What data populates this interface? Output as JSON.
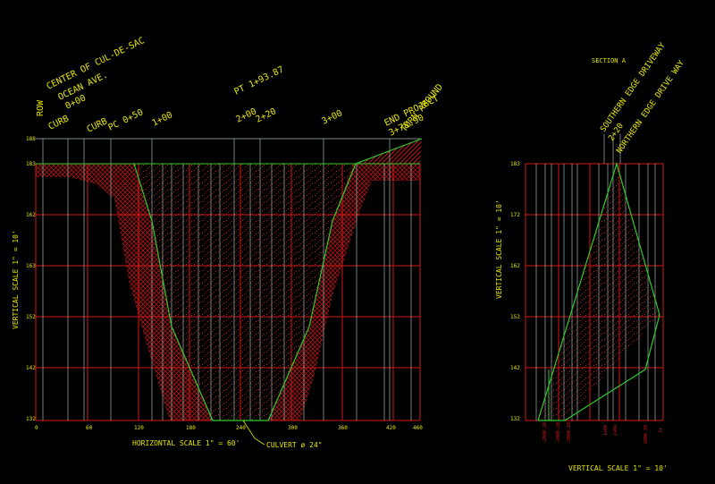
{
  "colors": {
    "background": "#000000",
    "grid_red": "#d01818",
    "grid_light": "#a0b4b4",
    "profile_green": "#2ecc2e",
    "hatch_red": "#c81818",
    "text_yellow": "#e6e600"
  },
  "profile": {
    "station_labels": {
      "row": "ROW",
      "cul_de_sac": "CENTER OF CUL-DE-SAC",
      "ocean_ave": "OCEAN AVE.",
      "sta_0_00": "0+00",
      "curb1": "CURB",
      "curb2": "CURB",
      "pc": "PC 0+50",
      "sta_1_00": "1+00",
      "pt": "PT 1+93.87",
      "sta_2_00": "2+00",
      "sta_2_20": "2+20",
      "sta_3_00": "3+00",
      "end_project": "END PROJECT",
      "end_sta": "3+78.90",
      "turn_around": "TURN AROUND"
    },
    "elevation_labels": [
      "188",
      "183",
      "162",
      "163",
      "152",
      "142",
      "132"
    ],
    "x_tick_labels": [
      "0",
      "60",
      "120",
      "180",
      "240",
      "300",
      "360",
      "420",
      "460"
    ],
    "horizontal_scale": "HORIZONTAL SCALE 1\" = 60'",
    "vertical_scale": "VERTICAL SCALE 1\" = 10'",
    "culvert": "CULVERT ø 24\""
  },
  "section": {
    "title": "SECTION A",
    "labels": {
      "southern": "SOUTHERN EDGE DRIVEWAY",
      "sta": "2+20",
      "northern": "NORTHERN EDGE DRIVE WAY"
    },
    "elevation_labels": [
      "183",
      "172",
      "162",
      "152",
      "142",
      "132"
    ],
    "bottom_labels": [
      "-2000.20",
      "-2000.20",
      "-2000.20",
      "2+00",
      "2+04",
      "2000.20",
      "3+"
    ],
    "vertical_scale": "VERTICAL SCALE 1\" = 10'",
    "side_scale": "VERTICAL SCALE 1\" = 10'"
  }
}
